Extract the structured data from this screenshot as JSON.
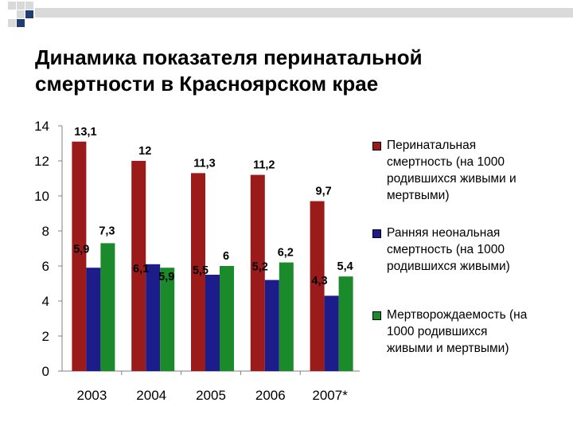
{
  "slide": {
    "title_line1": "Динамика показателя перинатальной",
    "title_line2": "смертности в Красноярском крае"
  },
  "colors": {
    "deco_gray": "#d9d9d9",
    "deco_blue": "#1f3c73",
    "series": [
      "#9b1b1b",
      "#1c1c8a",
      "#1a8a2a"
    ]
  },
  "chart_data": {
    "type": "bar",
    "categories": [
      "2003",
      "2004",
      "2005",
      "2006",
      "2007*"
    ],
    "series": [
      {
        "name": "Перинатальная смертность (на 1000 родившихся живыми и мертвыми)",
        "legend_lines": [
          "Перинатальная",
          "смертность (на 1000",
          "родившихся живыми и",
          "мертвыми)"
        ],
        "values": [
          13.1,
          12,
          11.3,
          11.2,
          9.7
        ],
        "labels": [
          "13,1",
          "12",
          "11,3",
          "11,2",
          "9,7"
        ]
      },
      {
        "name": "Ранняя неональная смертность (на 1000 родившихся живыми)",
        "legend_lines": [
          "Ранняя неональная",
          "смертность (на 1000",
          "родившихся живыми)"
        ],
        "values": [
          5.9,
          6.1,
          5.5,
          5.2,
          4.3
        ],
        "labels": [
          "5,9",
          "6,1",
          "5,5",
          "5,2",
          "4,3"
        ]
      },
      {
        "name": "Мертворождаемость (на 1000 родившихся живыми и мертвыми)",
        "legend_lines": [
          "Мертворождаемость (на",
          "1000 родившихся",
          "живыми и мертвыми)"
        ],
        "values": [
          7.3,
          5.9,
          6,
          6.2,
          5.4
        ],
        "labels": [
          "7,3",
          "5,9",
          "6",
          "6,2",
          "5,4"
        ]
      }
    ],
    "ylim": [
      0,
      14
    ],
    "yticks": [
      "0",
      "2",
      "4",
      "6",
      "8",
      "10",
      "12",
      "14"
    ],
    "grid": false,
    "legend_position": "right"
  }
}
